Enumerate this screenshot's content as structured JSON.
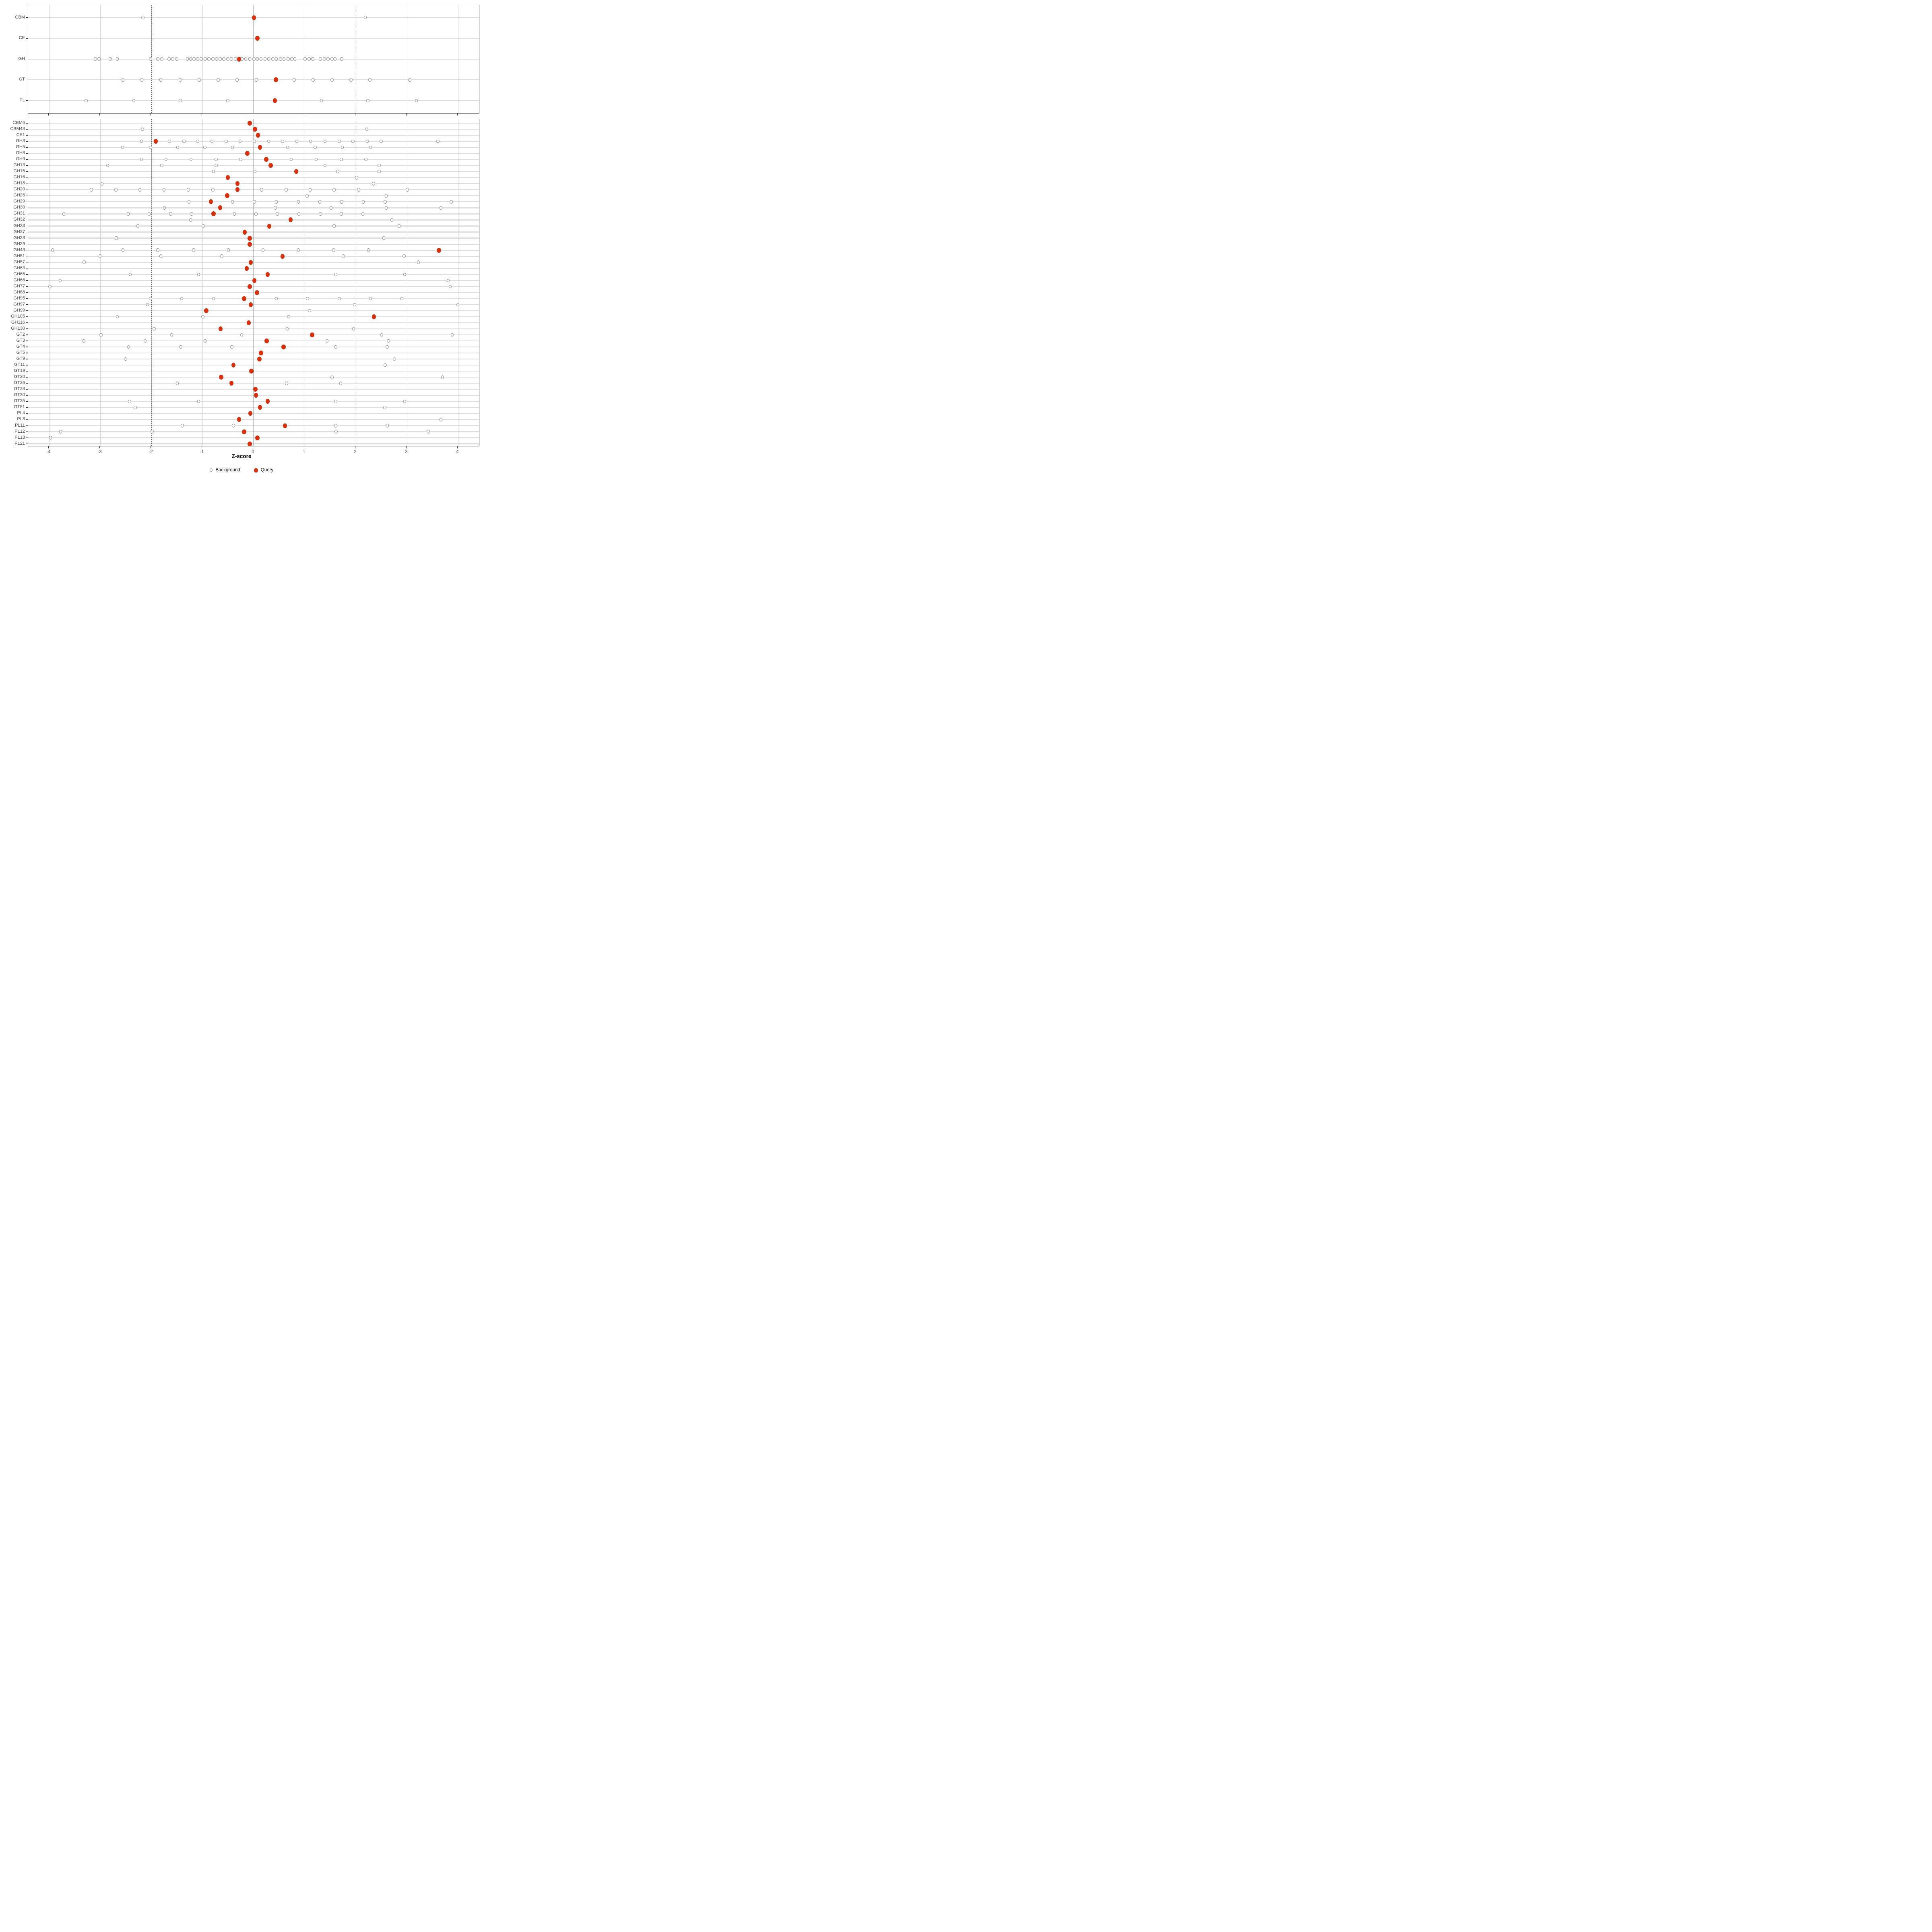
{
  "chart_data": {
    "type": "scatter",
    "title": "",
    "xlabel": "Z-score",
    "x_ticks": [
      -4,
      -3,
      -2,
      -1,
      0,
      1,
      2,
      3,
      4
    ],
    "xlim": [
      -4.4,
      4.43
    ],
    "reference_lines": {
      "solid_at": 0,
      "dashed_at": [
        -2,
        2
      ]
    },
    "colors": {
      "query": "#d5310e",
      "background_stroke": "#8f8f8f",
      "grid": "#dedede",
      "axis_text": "#4d4d4d"
    },
    "legend": [
      {
        "label": "Background",
        "marker": "open-circle"
      },
      {
        "label": "Query",
        "marker": "filled-circle"
      }
    ],
    "panels": [
      {
        "name": "families",
        "rows": [
          {
            "label": "CBM",
            "query": 0.01,
            "background": [
              -2.16,
              2.19
            ]
          },
          {
            "label": "CE",
            "query": 0.08,
            "background": []
          },
          {
            "label": "GH",
            "query": -0.28,
            "background": [
              -3.09,
              -3.02,
              -2.8,
              -2.66,
              -2.01,
              -1.87,
              -1.79,
              -1.65,
              -1.58,
              -1.5,
              -1.29,
              -1.23,
              -1.16,
              -1.09,
              -1.02,
              -0.94,
              -0.87,
              -0.79,
              -0.72,
              -0.65,
              -0.58,
              -0.5,
              -0.43,
              -0.35,
              -0.22,
              -0.15,
              -0.07,
              0.01,
              0.08,
              0.15,
              0.23,
              0.3,
              0.38,
              0.45,
              0.53,
              0.6,
              0.68,
              0.75,
              0.81,
              1.01,
              1.09,
              1.16,
              1.31,
              1.39,
              1.46,
              1.54,
              1.6,
              1.73
            ]
          },
          {
            "label": "GT",
            "query": 0.44,
            "background": [
              -2.55,
              -2.18,
              -1.81,
              -1.43,
              -1.06,
              -0.69,
              -0.32,
              0.06,
              0.8,
              1.17,
              1.54,
              1.91,
              2.28,
              3.06
            ]
          },
          {
            "label": "PL",
            "query": 0.42,
            "background": [
              -3.27,
              -2.34,
              -1.43,
              -0.5,
              1.33,
              2.24,
              3.19
            ]
          }
        ]
      },
      {
        "name": "subfamilies",
        "rows": [
          {
            "label": "CBM6",
            "query": -0.07,
            "background": []
          },
          {
            "label": "CBM48",
            "query": 0.03,
            "background": [
              -2.17,
              2.22
            ]
          },
          {
            "label": "CE1",
            "query": 0.09,
            "background": []
          },
          {
            "label": "GH3",
            "query": -1.91,
            "background": [
              -2.19,
              -1.64,
              -1.36,
              -1.09,
              -0.81,
              -0.53,
              -0.26,
              0.02,
              0.3,
              0.57,
              0.85,
              1.12,
              1.4,
              1.68,
              1.95,
              2.23,
              2.5,
              3.61
            ]
          },
          {
            "label": "GH5",
            "query": 0.13,
            "background": [
              -2.56,
              -2.01,
              -1.48,
              -0.95,
              -0.41,
              0.67,
              1.21,
              1.74,
              2.29
            ]
          },
          {
            "label": "GH8",
            "query": -0.12,
            "background": []
          },
          {
            "label": "GH9",
            "query": 0.25,
            "background": [
              -2.19,
              -1.71,
              -1.22,
              -0.73,
              -0.25,
              0.74,
              1.23,
              1.72,
              2.2
            ]
          },
          {
            "label": "GH13",
            "query": 0.34,
            "background": [
              -2.85,
              -1.79,
              -0.73,
              1.4,
              2.46
            ]
          },
          {
            "label": "GH15",
            "query": 0.84,
            "background": [
              -0.78,
              0.03,
              1.65,
              2.46
            ]
          },
          {
            "label": "GH16",
            "query": -0.5,
            "background": [
              2.02
            ]
          },
          {
            "label": "GH18",
            "query": -0.31,
            "background": [
              -2.96,
              2.35
            ]
          },
          {
            "label": "GH20",
            "query": -0.31,
            "background": [
              -3.17,
              -2.69,
              -2.22,
              -1.75,
              -1.27,
              -0.79,
              0.16,
              0.64,
              1.11,
              1.58,
              2.06,
              3.01
            ]
          },
          {
            "label": "GH26",
            "query": -0.51,
            "background": [
              1.05,
              2.6
            ]
          },
          {
            "label": "GH29",
            "query": -0.83,
            "background": [
              -1.26,
              -0.41,
              0.02,
              0.45,
              0.88,
              1.3,
              1.73,
              2.15,
              2.58,
              3.87
            ]
          },
          {
            "label": "GH30",
            "query": -0.65,
            "background": [
              -1.74,
              0.43,
              1.52,
              2.6,
              3.67
            ]
          },
          {
            "label": "GH31",
            "query": -0.78,
            "background": [
              -3.71,
              -2.45,
              -2.04,
              -1.62,
              -1.21,
              -0.37,
              0.05,
              0.47,
              0.89,
              1.31,
              1.72,
              2.14
            ]
          },
          {
            "label": "GH32",
            "query": 0.73,
            "background": [
              -1.23,
              2.71
            ]
          },
          {
            "label": "GH33",
            "query": 0.31,
            "background": [
              -2.26,
              -0.98,
              1.58,
              2.85
            ]
          },
          {
            "label": "GH37",
            "query": -0.17,
            "background": []
          },
          {
            "label": "GH38",
            "query": -0.07,
            "background": [
              -2.68,
              2.55
            ]
          },
          {
            "label": "GH39",
            "query": -0.07,
            "background": []
          },
          {
            "label": "GH43",
            "query": 3.63,
            "background": [
              -3.93,
              -2.55,
              -1.87,
              -1.17,
              -0.49,
              0.19,
              0.88,
              1.57,
              2.25
            ]
          },
          {
            "label": "GH51",
            "query": 0.57,
            "background": [
              -3.0,
              -1.81,
              -0.62,
              1.76,
              2.95
            ]
          },
          {
            "label": "GH57",
            "query": -0.05,
            "background": [
              -3.31,
              3.23
            ]
          },
          {
            "label": "GH63",
            "query": -0.13,
            "background": []
          },
          {
            "label": "GH65",
            "query": 0.28,
            "background": [
              -2.41,
              -1.07,
              1.61,
              2.96
            ]
          },
          {
            "label": "GH66",
            "query": 0.02,
            "background": [
              -3.78,
              3.81
            ]
          },
          {
            "label": "GH77",
            "query": -0.07,
            "background": [
              -3.98,
              3.85
            ]
          },
          {
            "label": "GH88",
            "query": 0.07,
            "background": []
          },
          {
            "label": "GH95",
            "query": -0.18,
            "background": [
              -2.01,
              -1.4,
              -0.78,
              0.45,
              1.06,
              1.68,
              2.29,
              2.9
            ]
          },
          {
            "label": "GH97",
            "query": -0.05,
            "background": [
              -2.07,
              1.98,
              4.0
            ]
          },
          {
            "label": "GH99",
            "query": -0.92,
            "background": [
              1.1
            ]
          },
          {
            "label": "GH105",
            "query": 2.36,
            "background": [
              -2.66,
              -0.99,
              0.69
            ]
          },
          {
            "label": "GH116",
            "query": -0.09,
            "background": []
          },
          {
            "label": "GH130",
            "query": -0.64,
            "background": [
              -1.94,
              0.66,
              1.96
            ]
          },
          {
            "label": "GT2",
            "query": 1.15,
            "background": [
              -2.98,
              -1.6,
              -0.23,
              2.51,
              3.89
            ]
          },
          {
            "label": "GT3",
            "query": 0.26,
            "background": [
              -3.32,
              -2.12,
              -0.94,
              1.44,
              2.64
            ]
          },
          {
            "label": "GT4",
            "query": 0.59,
            "background": [
              -2.44,
              -1.42,
              -0.42,
              1.61,
              2.62
            ]
          },
          {
            "label": "GT5",
            "query": 0.15,
            "background": []
          },
          {
            "label": "GT9",
            "query": 0.12,
            "background": [
              -2.5,
              2.76
            ]
          },
          {
            "label": "GT11",
            "query": -0.39,
            "background": [
              2.58
            ]
          },
          {
            "label": "GT19",
            "query": -0.04,
            "background": []
          },
          {
            "label": "GT20",
            "query": -0.63,
            "background": [
              1.54,
              3.7
            ]
          },
          {
            "label": "GT26",
            "query": -0.43,
            "background": [
              -1.49,
              0.65,
              1.71
            ]
          },
          {
            "label": "GT28",
            "query": 0.04,
            "background": []
          },
          {
            "label": "GT30",
            "query": 0.05,
            "background": []
          },
          {
            "label": "GT35",
            "query": 0.28,
            "background": [
              -2.42,
              -1.07,
              1.61,
              2.96
            ]
          },
          {
            "label": "GT51",
            "query": 0.13,
            "background": [
              -2.31,
              2.57
            ]
          },
          {
            "label": "PL4",
            "query": -0.06,
            "background": []
          },
          {
            "label": "PL8",
            "query": -0.28,
            "background": [
              3.67
            ]
          },
          {
            "label": "PL11",
            "query": 0.62,
            "background": [
              -1.39,
              -0.39,
              1.61,
              2.62
            ]
          },
          {
            "label": "PL12",
            "query": -0.18,
            "background": [
              -3.77,
              -1.98,
              1.62,
              3.42
            ]
          },
          {
            "label": "PL13",
            "query": 0.08,
            "background": [
              -3.97
            ]
          },
          {
            "label": "PL21",
            "query": -0.07,
            "background": []
          }
        ]
      }
    ]
  }
}
